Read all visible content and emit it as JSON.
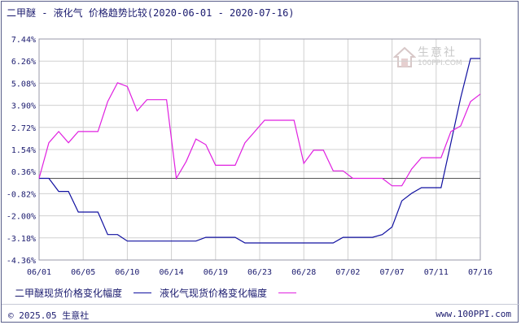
{
  "header": {
    "title": "二甲醚 - 液化气 价格趋势比较(2020-06-01 - 2020-07-16)"
  },
  "watermark": {
    "name": "生意社",
    "url": "100PPI.COM"
  },
  "footer": {
    "copyright": "© 2025.05 生意社",
    "site": "www.100PPI.com"
  },
  "colors": {
    "series_a": "#1010a0",
    "series_b": "#e020e0",
    "grid": "#d0d0d0",
    "zero": "#555555"
  },
  "chart_data": {
    "type": "line",
    "ylim": [
      -4.36,
      7.44
    ],
    "yticks": [
      "7.44%",
      "6.26%",
      "5.08%",
      "3.90%",
      "2.72%",
      "1.54%",
      "0.36%",
      "-0.82%",
      "-2.00%",
      "-3.18%",
      "-4.36%"
    ],
    "ytick_values": [
      7.44,
      6.26,
      5.08,
      3.9,
      2.72,
      1.54,
      0.36,
      -0.82,
      -2.0,
      -3.18,
      -4.36
    ],
    "xticks": [
      "06/01",
      "06/05",
      "06/10",
      "06/14",
      "06/19",
      "06/23",
      "06/28",
      "07/02",
      "07/07",
      "07/11",
      "07/16"
    ],
    "x_count": 46,
    "grid": true,
    "series": [
      {
        "name": "二甲醚现货价格变化幅度",
        "x": [
          0,
          1,
          2,
          3,
          4,
          5,
          6,
          7,
          8,
          9,
          10,
          11,
          12,
          13,
          14,
          15,
          16,
          17,
          18,
          19,
          20,
          21,
          22,
          23,
          24,
          25,
          26,
          27,
          28,
          29,
          30,
          31,
          32,
          33,
          34,
          35,
          36,
          37,
          38,
          39,
          40,
          41,
          42,
          43,
          44,
          45
        ],
        "values": [
          0.0,
          0.0,
          -0.7,
          -0.7,
          -1.8,
          -1.8,
          -1.8,
          -3.0,
          -3.0,
          -3.35,
          -3.35,
          -3.35,
          -3.35,
          -3.35,
          -3.35,
          -3.35,
          -3.35,
          -3.15,
          -3.15,
          -3.15,
          -3.15,
          -3.45,
          -3.45,
          -3.45,
          -3.45,
          -3.45,
          -3.45,
          -3.45,
          -3.45,
          -3.45,
          -3.45,
          -3.15,
          -3.15,
          -3.15,
          -3.15,
          -3.0,
          -2.6,
          -1.2,
          -0.8,
          -0.5,
          -0.5,
          -0.5,
          1.9,
          4.3,
          6.4,
          6.4
        ]
      },
      {
        "name": "液化气现货价格变化幅度",
        "x": [
          0,
          1,
          2,
          3,
          4,
          5,
          6,
          7,
          8,
          9,
          10,
          11,
          12,
          13,
          14,
          15,
          16,
          17,
          18,
          19,
          20,
          21,
          22,
          23,
          24,
          25,
          26,
          27,
          28,
          29,
          30,
          31,
          32,
          33,
          34,
          35,
          36,
          37,
          38,
          39,
          40,
          41,
          42,
          43,
          44,
          45
        ],
        "values": [
          0.0,
          1.9,
          2.5,
          1.9,
          2.5,
          2.5,
          2.5,
          4.1,
          5.1,
          4.9,
          3.6,
          4.2,
          4.2,
          4.2,
          0.0,
          0.9,
          2.1,
          1.8,
          0.7,
          0.7,
          0.7,
          1.9,
          2.5,
          3.1,
          3.1,
          3.1,
          3.1,
          0.8,
          1.5,
          1.5,
          0.4,
          0.4,
          0.0,
          0.0,
          0.0,
          0.0,
          -0.4,
          -0.4,
          0.5,
          1.1,
          1.1,
          1.1,
          2.5,
          2.8,
          4.1,
          4.5
        ]
      }
    ]
  }
}
